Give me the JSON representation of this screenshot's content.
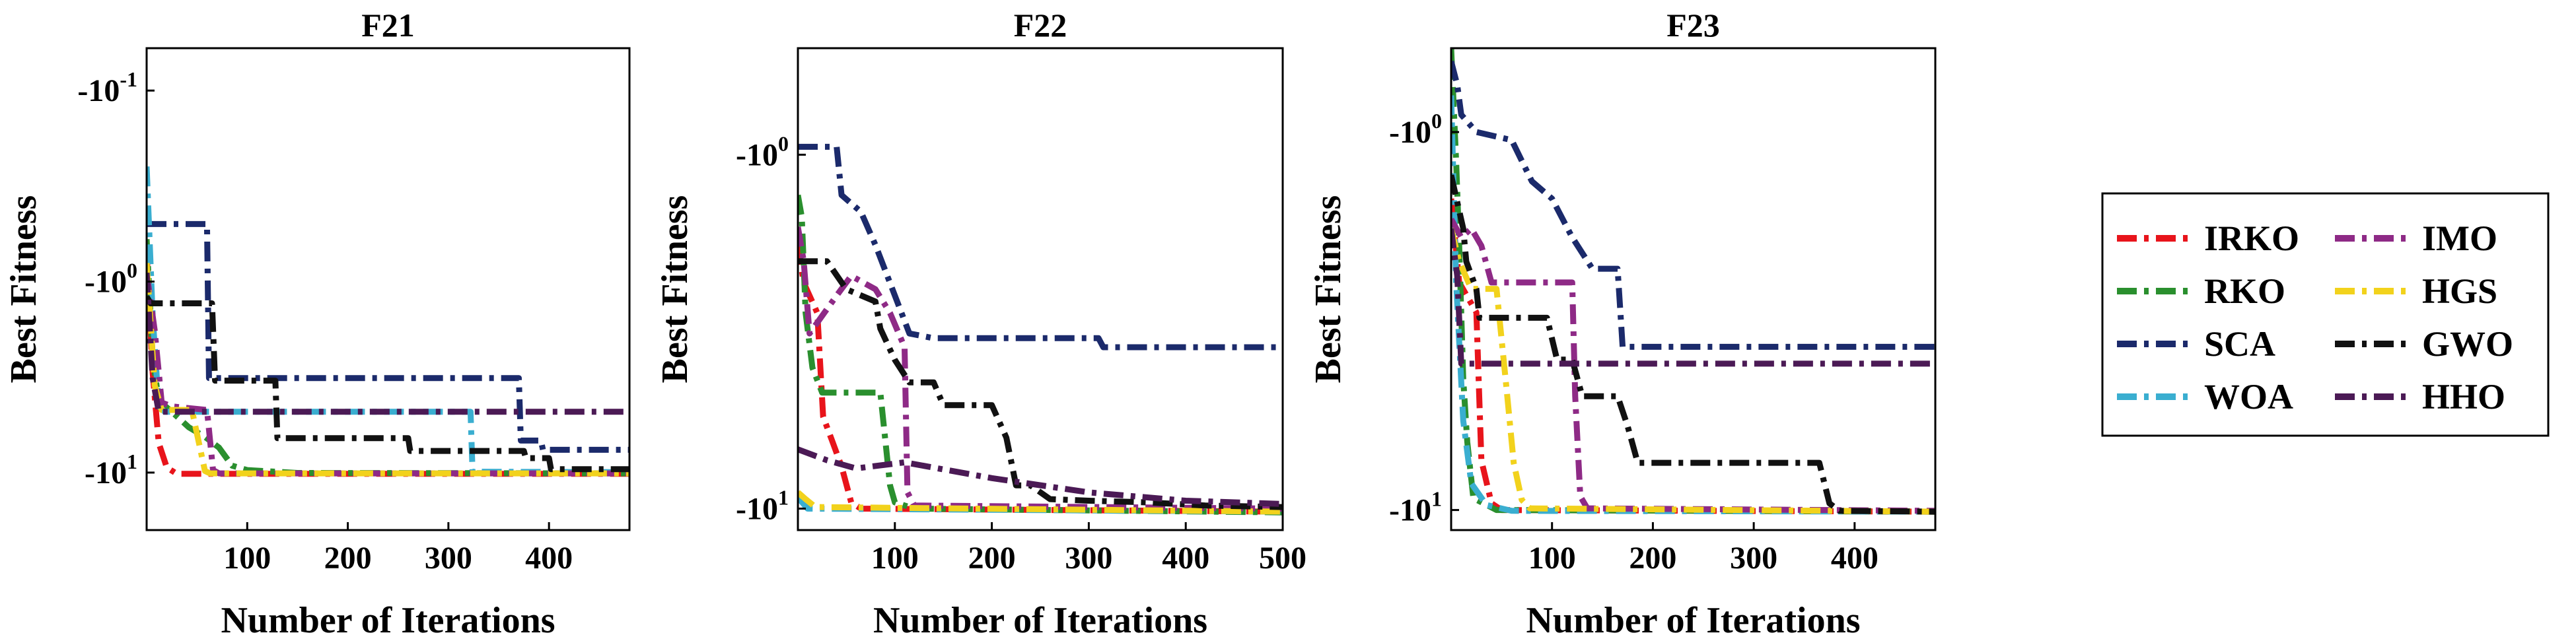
{
  "chart_data": [
    {
      "type": "line",
      "title": "F21",
      "xlabel": "Number of Iterations",
      "ylabel": "Best Fitness",
      "yscale": "symlog-negative",
      "xlim": [
        0,
        480
      ],
      "ylim": [
        -20.0,
        -0.06
      ],
      "xticks": [
        100,
        200,
        300,
        400
      ],
      "xtick_labels": [
        "100",
        "200",
        "300",
        "400"
      ],
      "yticks": [
        -0.1,
        -1.0,
        -10.0
      ],
      "ytick_labels": [
        {
          "base": "-10",
          "exp": "-1"
        },
        {
          "base": "-10",
          "exp": "0"
        },
        {
          "base": "-10",
          "exp": "1"
        }
      ],
      "series": [
        {
          "name": "IRKO",
          "points": [
            [
              0,
              -0.7
            ],
            [
              6,
              -3.0
            ],
            [
              12,
              -7.0
            ],
            [
              20,
              -9.4
            ],
            [
              30,
              -10.15
            ],
            [
              480,
              -10.15
            ]
          ]
        },
        {
          "name": "RKO",
          "points": [
            [
              0,
              -0.6
            ],
            [
              6,
              -2.5
            ],
            [
              12,
              -4.2
            ],
            [
              25,
              -4.8
            ],
            [
              42,
              -5.8
            ],
            [
              58,
              -6.5
            ],
            [
              72,
              -7.4
            ],
            [
              85,
              -9.2
            ],
            [
              100,
              -9.7
            ],
            [
              150,
              -10.05
            ],
            [
              480,
              -10.1
            ]
          ]
        },
        {
          "name": "SCA",
          "points": [
            [
              0,
              -0.5
            ],
            [
              5,
              -0.5
            ],
            [
              10,
              -0.5
            ],
            [
              60,
              -0.5
            ],
            [
              62,
              -3.2
            ],
            [
              370,
              -3.2
            ],
            [
              372,
              -6.8
            ],
            [
              392,
              -6.8
            ],
            [
              394,
              -7.6
            ],
            [
              480,
              -7.6
            ]
          ]
        },
        {
          "name": "WOA",
          "points": [
            [
              0,
              -0.25
            ],
            [
              6,
              -1.5
            ],
            [
              12,
              -4.5
            ],
            [
              18,
              -4.8
            ],
            [
              322,
              -4.8
            ],
            [
              324,
              -9.9
            ],
            [
              480,
              -9.95
            ]
          ]
        },
        {
          "name": "IMO",
          "points": [
            [
              0,
              -0.9
            ],
            [
              8,
              -1.8
            ],
            [
              15,
              -4.3
            ],
            [
              25,
              -4.5
            ],
            [
              60,
              -4.7
            ],
            [
              66,
              -9.7
            ],
            [
              72,
              -10.1
            ],
            [
              480,
              -10.1
            ]
          ]
        },
        {
          "name": "HGS",
          "points": [
            [
              0,
              -0.8
            ],
            [
              8,
              -3.5
            ],
            [
              15,
              -4.7
            ],
            [
              45,
              -4.7
            ],
            [
              52,
              -7.0
            ],
            [
              58,
              -9.8
            ],
            [
              63,
              -10.1
            ],
            [
              480,
              -10.1
            ]
          ]
        },
        {
          "name": "GWO",
          "points": [
            [
              0,
              -1.2
            ],
            [
              4,
              -1.3
            ],
            [
              65,
              -1.3
            ],
            [
              68,
              -3.3
            ],
            [
              128,
              -3.3
            ],
            [
              130,
              -6.6
            ],
            [
              260,
              -6.6
            ],
            [
              262,
              -7.7
            ],
            [
              375,
              -7.7
            ],
            [
              377,
              -8.4
            ],
            [
              400,
              -8.4
            ],
            [
              402,
              -9.6
            ],
            [
              480,
              -9.6
            ]
          ]
        },
        {
          "name": "HHO",
          "points": [
            [
              0,
              -0.9
            ],
            [
              6,
              -3.2
            ],
            [
              12,
              -4.8
            ],
            [
              480,
              -4.8
            ]
          ]
        }
      ]
    },
    {
      "type": "line",
      "title": "F22",
      "xlabel": "Number of Iterations",
      "ylabel": "Best Fitness",
      "yscale": "symlog-negative",
      "xlim": [
        0,
        500
      ],
      "ylim": [
        -11.5,
        -0.5
      ],
      "xticks": [
        100,
        200,
        300,
        400,
        500
      ],
      "xtick_labels": [
        "100",
        "200",
        "300",
        "400",
        "500"
      ],
      "yticks": [
        -1.0,
        -10.0
      ],
      "ytick_labels": [
        {
          "base": "-10",
          "exp": "0"
        },
        {
          "base": "-10",
          "exp": "1"
        }
      ],
      "series": [
        {
          "name": "IRKO",
          "points": [
            [
              0,
              -1.8
            ],
            [
              6,
              -2.3
            ],
            [
              20,
              -2.8
            ],
            [
              26,
              -5.5
            ],
            [
              35,
              -6.4
            ],
            [
              45,
              -7.6
            ],
            [
              55,
              -9.6
            ],
            [
              65,
              -10.0
            ],
            [
              500,
              -10.2
            ]
          ]
        },
        {
          "name": "RKO",
          "points": [
            [
              0,
              -1.3
            ],
            [
              4,
              -1.5
            ],
            [
              8,
              -2.8
            ],
            [
              15,
              -4.0
            ],
            [
              25,
              -4.7
            ],
            [
              85,
              -4.7
            ],
            [
              95,
              -8.6
            ],
            [
              100,
              -9.6
            ],
            [
              120,
              -10.0
            ],
            [
              500,
              -10.25
            ]
          ]
        },
        {
          "name": "SCA",
          "points": [
            [
              0,
              -0.95
            ],
            [
              40,
              -0.95
            ],
            [
              45,
              -1.3
            ],
            [
              65,
              -1.45
            ],
            [
              80,
              -1.8
            ],
            [
              100,
              -2.5
            ],
            [
              115,
              -3.2
            ],
            [
              140,
              -3.3
            ],
            [
              310,
              -3.3
            ],
            [
              315,
              -3.5
            ],
            [
              500,
              -3.5
            ]
          ]
        },
        {
          "name": "WOA",
          "points": [
            [
              0,
              -9.3
            ],
            [
              10,
              -10.0
            ],
            [
              500,
              -10.2
            ]
          ]
        },
        {
          "name": "IMO",
          "points": [
            [
              0,
              -1.6
            ],
            [
              6,
              -2.0
            ],
            [
              12,
              -3.2
            ],
            [
              40,
              -2.5
            ],
            [
              55,
              -2.2
            ],
            [
              80,
              -2.4
            ],
            [
              95,
              -2.8
            ],
            [
              110,
              -3.5
            ],
            [
              113,
              -9.0
            ],
            [
              120,
              -9.8
            ],
            [
              500,
              -10.0
            ]
          ]
        },
        {
          "name": "HGS",
          "points": [
            [
              0,
              -9.0
            ],
            [
              8,
              -9.4
            ],
            [
              18,
              -9.9
            ],
            [
              500,
              -10.2
            ]
          ]
        },
        {
          "name": "GWO",
          "points": [
            [
              0,
              -2.0
            ],
            [
              30,
              -2.0
            ],
            [
              50,
              -2.4
            ],
            [
              80,
              -2.6
            ],
            [
              85,
              -3.1
            ],
            [
              100,
              -3.8
            ],
            [
              115,
              -4.4
            ],
            [
              140,
              -4.4
            ],
            [
              150,
              -5.1
            ],
            [
              200,
              -5.1
            ],
            [
              215,
              -6.3
            ],
            [
              225,
              -8.6
            ],
            [
              240,
              -8.6
            ],
            [
              260,
              -9.4
            ],
            [
              300,
              -9.5
            ],
            [
              360,
              -9.6
            ],
            [
              420,
              -9.8
            ],
            [
              500,
              -9.9
            ]
          ]
        },
        {
          "name": "HHO",
          "points": [
            [
              0,
              -6.8
            ],
            [
              30,
              -7.3
            ],
            [
              60,
              -7.7
            ],
            [
              110,
              -7.4
            ],
            [
              200,
              -8.2
            ],
            [
              300,
              -9.0
            ],
            [
              400,
              -9.5
            ],
            [
              500,
              -9.7
            ]
          ]
        }
      ]
    },
    {
      "type": "line",
      "title": "F23",
      "xlabel": "Number of Iterations",
      "ylabel": "Best Fitness",
      "yscale": "symlog-negative",
      "xlim": [
        0,
        480
      ],
      "ylim": [
        -11.3,
        -0.6
      ],
      "xticks": [
        100,
        200,
        300,
        400
      ],
      "xtick_labels": [
        "100",
        "200",
        "300",
        "400"
      ],
      "yticks": [
        -1.0,
        -10.0
      ],
      "ytick_labels": [
        {
          "base": "-10",
          "exp": "0"
        },
        {
          "base": "-10",
          "exp": "1"
        }
      ],
      "series": [
        {
          "name": "IRKO",
          "points": [
            [
              0,
              -1.5
            ],
            [
              8,
              -2.5
            ],
            [
              25,
              -3.0
            ],
            [
              30,
              -7.4
            ],
            [
              40,
              -9.6
            ],
            [
              50,
              -10.0
            ],
            [
              480,
              -10.1
            ]
          ]
        },
        {
          "name": "RKO",
          "points": [
            [
              0,
              -0.6
            ],
            [
              5,
              -1.2
            ],
            [
              8,
              -2.0
            ],
            [
              12,
              -4.5
            ],
            [
              16,
              -6.6
            ],
            [
              22,
              -9.3
            ],
            [
              45,
              -10.0
            ],
            [
              480,
              -10.1
            ]
          ]
        },
        {
          "name": "SCA",
          "points": [
            [
              0,
              -0.65
            ],
            [
              6,
              -0.75
            ],
            [
              10,
              -0.9
            ],
            [
              25,
              -1.0
            ],
            [
              60,
              -1.05
            ],
            [
              80,
              -1.35
            ],
            [
              100,
              -1.5
            ],
            [
              120,
              -1.9
            ],
            [
              140,
              -2.3
            ],
            [
              165,
              -2.3
            ],
            [
              170,
              -3.7
            ],
            [
              480,
              -3.7
            ]
          ]
        },
        {
          "name": "WOA",
          "points": [
            [
              0,
              -0.8
            ],
            [
              5,
              -2.5
            ],
            [
              12,
              -5.8
            ],
            [
              20,
              -8.5
            ],
            [
              35,
              -9.7
            ],
            [
              60,
              -10.05
            ],
            [
              480,
              -10.1
            ]
          ]
        },
        {
          "name": "IMO",
          "points": [
            [
              0,
              -1.7
            ],
            [
              10,
              -1.9
            ],
            [
              20,
              -1.8
            ],
            [
              30,
              -2.0
            ],
            [
              40,
              -2.5
            ],
            [
              120,
              -2.5
            ],
            [
              123,
              -5.0
            ],
            [
              128,
              -9.2
            ],
            [
              135,
              -9.9
            ],
            [
              480,
              -10.05
            ]
          ]
        },
        {
          "name": "HGS",
          "points": [
            [
              0,
              -1.8
            ],
            [
              8,
              -2.2
            ],
            [
              20,
              -2.6
            ],
            [
              45,
              -2.6
            ],
            [
              55,
              -4.8
            ],
            [
              62,
              -7.5
            ],
            [
              70,
              -9.4
            ],
            [
              78,
              -9.9
            ],
            [
              480,
              -10.1
            ]
          ]
        },
        {
          "name": "GWO",
          "points": [
            [
              0,
              -1.3
            ],
            [
              12,
              -1.8
            ],
            [
              15,
              -2.2
            ],
            [
              25,
              -2.6
            ],
            [
              28,
              -3.1
            ],
            [
              95,
              -3.1
            ],
            [
              105,
              -4.0
            ],
            [
              120,
              -4.0
            ],
            [
              130,
              -5.0
            ],
            [
              165,
              -5.0
            ],
            [
              175,
              -6.0
            ],
            [
              185,
              -7.5
            ],
            [
              365,
              -7.5
            ],
            [
              375,
              -9.6
            ],
            [
              385,
              -10.05
            ],
            [
              480,
              -10.1
            ]
          ]
        },
        {
          "name": "HHO",
          "points": [
            [
              0,
              -1.8
            ],
            [
              6,
              -2.4
            ],
            [
              10,
              -4.1
            ],
            [
              480,
              -4.1
            ]
          ]
        }
      ]
    }
  ],
  "legend": {
    "placement": "right",
    "entries": [
      {
        "name": "IRKO",
        "color": "#e8141b"
      },
      {
        "name": "IMO",
        "color": "#8e2a86"
      },
      {
        "name": "RKO",
        "color": "#2a8f2e"
      },
      {
        "name": "HGS",
        "color": "#f2d21c"
      },
      {
        "name": "SCA",
        "color": "#1b2a6b"
      },
      {
        "name": "GWO",
        "color": "#111111"
      },
      {
        "name": "WOA",
        "color": "#3aaed0"
      },
      {
        "name": "HHO",
        "color": "#4b1a55"
      }
    ]
  },
  "colors": {
    "IRKO": "#e8141b",
    "RKO": "#2a8f2e",
    "SCA": "#1b2a6b",
    "WOA": "#3aaed0",
    "IMO": "#8e2a86",
    "HGS": "#f2d21c",
    "GWO": "#111111",
    "HHO": "#4b1a55"
  }
}
